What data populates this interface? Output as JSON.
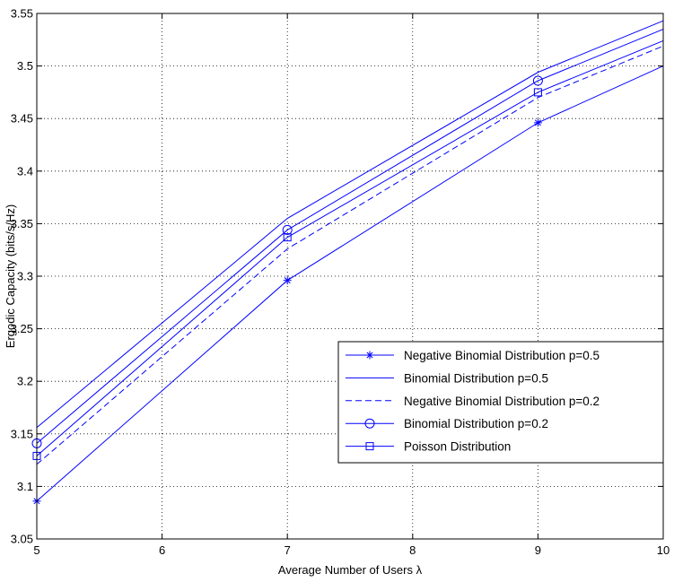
{
  "chart_data": {
    "type": "line",
    "title": "",
    "xlabel": "Average Number of Users λ",
    "ylabel": "Ergodic Capacity (bits/s/Hz)",
    "xlim": [
      5,
      10
    ],
    "ylim": [
      3.05,
      3.55
    ],
    "xticks": [
      5,
      6,
      7,
      8,
      9,
      10
    ],
    "yticks": [
      3.05,
      3.1,
      3.15,
      3.2,
      3.25,
      3.3,
      3.35,
      3.4,
      3.45,
      3.5,
      3.55
    ],
    "grid": true,
    "legend_position": "lower-right",
    "line_color": "#0000ff",
    "x": [
      5,
      7,
      9,
      10
    ],
    "series": [
      {
        "name": "Negative Binomial Distribution p=0.5",
        "values": [
          3.086,
          3.296,
          3.446,
          3.5
        ],
        "marker": "star",
        "dash": "solid"
      },
      {
        "name": "Binomial Distribution p=0.5",
        "values": [
          3.156,
          3.355,
          3.494,
          3.543
        ],
        "marker": "none",
        "dash": "solid"
      },
      {
        "name": "Negative Binomial Distribution p=0.2",
        "values": [
          3.121,
          3.326,
          3.47,
          3.519
        ],
        "marker": "none",
        "dash": "dashed"
      },
      {
        "name": "Binomial Distribution p=0.2",
        "values": [
          3.141,
          3.344,
          3.486,
          3.535
        ],
        "marker": "circle",
        "dash": "solid"
      },
      {
        "name": "Poisson Distribution",
        "values": [
          3.129,
          3.337,
          3.475,
          3.524
        ],
        "marker": "square",
        "dash": "solid"
      }
    ]
  }
}
